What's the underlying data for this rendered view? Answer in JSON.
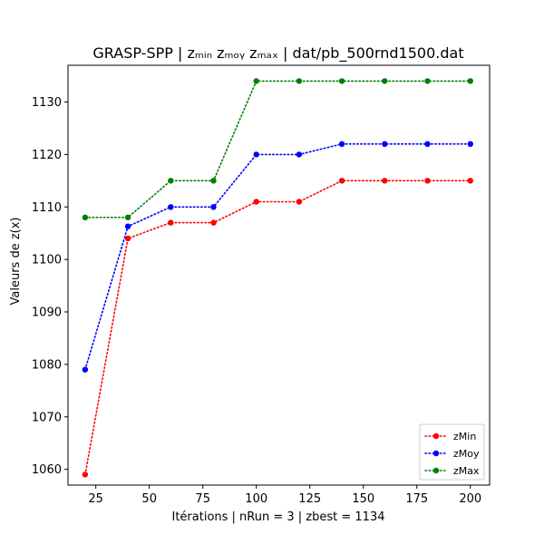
{
  "chart_data": {
    "type": "line",
    "title": "GRASP-SPP | zₘᵢₙ  zₘₒᵧ  zₘₐₓ | dat/pb_500rnd1500.dat",
    "xlabel": "Itérations | nRun = 3 | zbest = 1134",
    "ylabel": "Valeurs de z(x)",
    "x": [
      20,
      40,
      60,
      80,
      100,
      120,
      140,
      160,
      180,
      200
    ],
    "xlim": [
      12,
      209
    ],
    "ylim": [
      1057,
      1137
    ],
    "xticks": [
      25,
      50,
      75,
      100,
      125,
      150,
      175,
      200
    ],
    "yticks": [
      1060,
      1070,
      1080,
      1090,
      1100,
      1110,
      1120,
      1130
    ],
    "grid": false,
    "legend_position": "lower-right",
    "series": [
      {
        "name": "zMin",
        "color": "#ff0000",
        "values": [
          1059,
          1104,
          1107,
          1107,
          1111,
          1111,
          1115,
          1115,
          1115,
          1115
        ]
      },
      {
        "name": "zMoy",
        "color": "#0000ff",
        "values": [
          1079,
          1106.3,
          1110,
          1110,
          1120,
          1120,
          1122,
          1122,
          1122,
          1122
        ]
      },
      {
        "name": "zMax",
        "color": "#008000",
        "values": [
          1108,
          1108,
          1115,
          1115,
          1134,
          1134,
          1134,
          1134,
          1134,
          1134
        ]
      }
    ]
  }
}
